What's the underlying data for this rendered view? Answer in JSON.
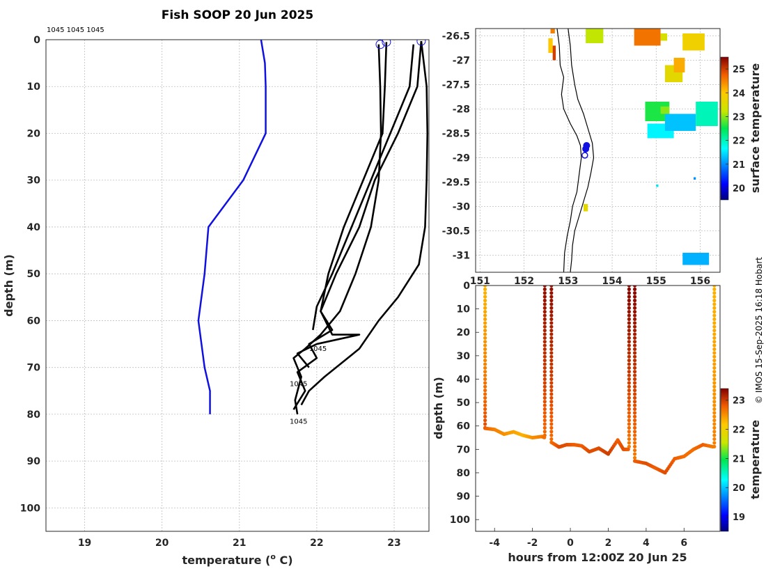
{
  "chart_data": [
    {
      "id": "profile",
      "type": "line",
      "title": "Fish SOOP 20 Jun 2025",
      "xlabel": "temperature (",
      "xlabel_sup": "o",
      "xlabel_unit": " C)",
      "ylabel": "depth (m)",
      "xlim": [
        18.5,
        23.45
      ],
      "ylim": [
        105,
        0
      ],
      "xticks": [
        19,
        20,
        21,
        22,
        23
      ],
      "yticks": [
        0,
        10,
        20,
        30,
        40,
        50,
        60,
        70,
        80,
        90,
        100
      ],
      "top_annotation": "1045 1045 1045",
      "tag_labels": [
        {
          "text": "1045",
          "x": 21.9,
          "y": 66.5
        },
        {
          "text": "1045",
          "x": 21.65,
          "y": 74
        },
        {
          "text": "1045",
          "x": 21.65,
          "y": 82
        }
      ],
      "surface_markers": [
        {
          "x": 22.82,
          "y": 1.0
        },
        {
          "x": 22.9,
          "y": 0.5
        },
        {
          "x": 23.35,
          "y": 0.3
        }
      ],
      "reference_profile": {
        "name": "climatology",
        "color": "#1010e0",
        "points": [
          [
            21.28,
            0
          ],
          [
            21.33,
            5
          ],
          [
            21.34,
            10
          ],
          [
            21.34,
            20
          ],
          [
            21.05,
            30
          ],
          [
            20.6,
            40
          ],
          [
            20.55,
            50
          ],
          [
            20.47,
            60
          ],
          [
            20.55,
            70
          ],
          [
            20.62,
            75
          ],
          [
            20.62,
            80
          ]
        ]
      },
      "series": [
        {
          "name": "profile 1",
          "color": "#000000",
          "points": [
            [
              22.8,
              1
            ],
            [
              22.82,
              10
            ],
            [
              22.83,
              20
            ],
            [
              22.8,
              30
            ],
            [
              22.7,
              40
            ],
            [
              22.5,
              50
            ],
            [
              22.3,
              58
            ],
            [
              22.05,
              63
            ],
            [
              21.85,
              66
            ],
            [
              21.7,
              68
            ],
            [
              21.8,
              72
            ],
            [
              21.72,
              77
            ],
            [
              21.75,
              80
            ]
          ]
        },
        {
          "name": "profile 2",
          "color": "#000000",
          "points": [
            [
              22.9,
              0.5
            ],
            [
              22.88,
              10
            ],
            [
              22.85,
              20
            ],
            [
              22.6,
              30
            ],
            [
              22.35,
              40
            ],
            [
              22.15,
              50
            ],
            [
              22.05,
              58
            ],
            [
              22.2,
              62
            ],
            [
              21.9,
              65
            ],
            [
              22.0,
              68
            ],
            [
              21.75,
              71
            ],
            [
              21.85,
              75
            ],
            [
              21.7,
              79
            ]
          ]
        },
        {
          "name": "profile 3",
          "color": "#000000",
          "points": [
            [
              23.35,
              0.3
            ],
            [
              23.3,
              10
            ],
            [
              23.05,
              20
            ],
            [
              22.75,
              30
            ],
            [
              22.55,
              40
            ],
            [
              22.25,
              50
            ],
            [
              22.05,
              58
            ],
            [
              22.2,
              63
            ],
            [
              22.55,
              63
            ],
            [
              22.0,
              65
            ],
            [
              21.75,
              67
            ],
            [
              21.9,
              70
            ]
          ]
        },
        {
          "name": "profile 4",
          "color": "#000000",
          "points": [
            [
              23.25,
              1
            ],
            [
              23.2,
              10
            ],
            [
              22.95,
              20
            ],
            [
              22.7,
              30
            ],
            [
              22.45,
              40
            ],
            [
              22.2,
              50
            ],
            [
              22.0,
              57
            ],
            [
              21.95,
              62
            ]
          ]
        },
        {
          "name": "profile 5",
          "color": "#000000",
          "points": [
            [
              23.35,
              0.3
            ],
            [
              23.42,
              10
            ],
            [
              23.43,
              20
            ],
            [
              23.42,
              30
            ],
            [
              23.4,
              40
            ],
            [
              23.32,
              48
            ],
            [
              23.05,
              55
            ],
            [
              22.8,
              60
            ],
            [
              22.55,
              66
            ],
            [
              22.1,
              72
            ],
            [
              21.9,
              75
            ],
            [
              21.8,
              78
            ]
          ]
        }
      ]
    },
    {
      "id": "map",
      "type": "heatmap",
      "xlim": [
        150.9,
        156.45
      ],
      "ylim": [
        -31.35,
        -26.35
      ],
      "xticks": [
        151,
        152,
        153,
        154,
        155,
        156
      ],
      "yticks": [
        -26.5,
        -27,
        -27.5,
        -28,
        -28.5,
        -29,
        -29.5,
        -30,
        -30.5,
        -31
      ],
      "ytick_labels": [
        "-26.5",
        "-27",
        "-27.5",
        "-28",
        "-28.5",
        "-29",
        "-29.5",
        "-30",
        "-30.5",
        "-31"
      ],
      "colorbar_label": "surface temperature",
      "colorbar_range": [
        19.5,
        25.5
      ],
      "colorbar_ticks": [
        20,
        21,
        22,
        23,
        24,
        25
      ],
      "sst_patches": [
        {
          "lon0": 152.6,
          "lat0": -26.45,
          "lon1": 152.7,
          "lat1": -26.35,
          "value": 24.5
        },
        {
          "lon0": 152.55,
          "lat0": -26.85,
          "lon1": 152.65,
          "lat1": -26.55,
          "value": 24.0
        },
        {
          "lon0": 152.65,
          "lat0": -27.0,
          "lon1": 152.72,
          "lat1": -26.7,
          "value": 25.0
        },
        {
          "lon0": 153.4,
          "lat0": -26.65,
          "lon1": 153.8,
          "lat1": -26.35,
          "value": 23.2
        },
        {
          "lon0": 154.5,
          "lat0": -26.7,
          "lon1": 155.1,
          "lat1": -26.35,
          "value": 24.6
        },
        {
          "lon0": 155.1,
          "lat0": -26.6,
          "lon1": 155.25,
          "lat1": -26.45,
          "value": 23.4
        },
        {
          "lon0": 155.6,
          "lat0": -26.8,
          "lon1": 156.1,
          "lat1": -26.45,
          "value": 23.8
        },
        {
          "lon0": 155.2,
          "lat0": -27.45,
          "lon1": 155.6,
          "lat1": -27.1,
          "value": 23.6
        },
        {
          "lon0": 155.4,
          "lat0": -27.25,
          "lon1": 155.65,
          "lat1": -26.95,
          "value": 24.2
        },
        {
          "lon0": 154.75,
          "lat0": -28.25,
          "lon1": 155.3,
          "lat1": -27.85,
          "value": 22.6
        },
        {
          "lon0": 154.8,
          "lat0": -28.6,
          "lon1": 155.4,
          "lat1": -28.3,
          "value": 21.6
        },
        {
          "lon0": 155.2,
          "lat0": -28.45,
          "lon1": 155.9,
          "lat1": -28.1,
          "value": 21.3
        },
        {
          "lon0": 155.9,
          "lat0": -28.35,
          "lon1": 156.4,
          "lat1": -27.85,
          "value": 22.0
        },
        {
          "lon0": 155.1,
          "lat0": -28.1,
          "lon1": 155.3,
          "lat1": -27.95,
          "value": 23.0
        },
        {
          "lon0": 155.6,
          "lat0": -31.2,
          "lon1": 156.2,
          "lat1": -30.95,
          "value": 21.2
        },
        {
          "lon0": 153.35,
          "lat0": -30.1,
          "lon1": 153.45,
          "lat1": -29.95,
          "value": 23.6
        },
        {
          "lon0": 155.0,
          "lat0": -29.6,
          "lon1": 155.05,
          "lat1": -29.55,
          "value": 21.5
        },
        {
          "lon0": 155.85,
          "lat0": -29.45,
          "lon1": 155.9,
          "lat1": -29.4,
          "value": 21.0
        }
      ],
      "coast_west": [
        [
          152.75,
          -26.35
        ],
        [
          152.8,
          -26.7
        ],
        [
          152.82,
          -27.1
        ],
        [
          152.9,
          -27.35
        ],
        [
          152.85,
          -27.7
        ],
        [
          152.9,
          -28.0
        ],
        [
          153.05,
          -28.3
        ],
        [
          153.2,
          -28.55
        ],
        [
          153.28,
          -28.75
        ],
        [
          153.3,
          -29.0
        ],
        [
          153.25,
          -29.35
        ],
        [
          153.2,
          -29.7
        ],
        [
          153.1,
          -30.0
        ],
        [
          153.05,
          -30.3
        ],
        [
          152.98,
          -30.6
        ],
        [
          152.92,
          -30.95
        ],
        [
          152.9,
          -31.35
        ]
      ],
      "coast_east": [
        [
          153.0,
          -26.35
        ],
        [
          153.05,
          -26.7
        ],
        [
          153.08,
          -27.1
        ],
        [
          153.15,
          -27.5
        ],
        [
          153.22,
          -27.8
        ],
        [
          153.35,
          -28.1
        ],
        [
          153.45,
          -28.4
        ],
        [
          153.55,
          -28.7
        ],
        [
          153.58,
          -29.0
        ],
        [
          153.52,
          -29.3
        ],
        [
          153.45,
          -29.6
        ],
        [
          153.35,
          -29.9
        ],
        [
          153.25,
          -30.2
        ],
        [
          153.15,
          -30.5
        ],
        [
          153.1,
          -30.8
        ],
        [
          153.08,
          -31.1
        ],
        [
          153.05,
          -31.35
        ]
      ],
      "track": [
        {
          "lon": 153.42,
          "lat": -28.75
        },
        {
          "lon": 153.4,
          "lat": -28.82
        },
        {
          "lon": 153.38,
          "lat": -28.95
        }
      ]
    },
    {
      "id": "section",
      "type": "scatter",
      "xlabel": "hours from 12:00Z 20 Jun 25",
      "ylabel": "depth (m)",
      "xlim": [
        -5.0,
        7.9
      ],
      "ylim": [
        105,
        0
      ],
      "xticks": [
        -4,
        -2,
        0,
        2,
        4,
        6
      ],
      "xtick_labels": [
        "-4",
        "-2",
        "0",
        "2",
        "4",
        "6"
      ],
      "yticks": [
        0,
        10,
        20,
        30,
        40,
        50,
        60,
        70,
        80,
        90,
        100
      ],
      "colorbar_label": "temperature",
      "colorbar_range": [
        18.5,
        23.4
      ],
      "colorbar_ticks": [
        19,
        20,
        21,
        22,
        23
      ],
      "casts": [
        {
          "time": -4.5,
          "t_top": 22.3,
          "t_bottom": 22.9,
          "bottom": 61
        },
        {
          "time": -1.35,
          "t_top": 23.3,
          "t_bottom": 22.7,
          "bottom": 65
        },
        {
          "time": -1.0,
          "t_top": 23.3,
          "t_bottom": 22.7,
          "bottom": 67
        },
        {
          "time": 3.1,
          "t_top": 23.35,
          "t_bottom": 22.6,
          "bottom": 70
        },
        {
          "time": 3.4,
          "t_top": 23.35,
          "t_bottom": 22.6,
          "bottom": 75
        },
        {
          "time": 7.6,
          "t_top": 22.3,
          "t_bottom": 22.6,
          "bottom": 69
        }
      ],
      "tows": [
        {
          "points": [
            [
              -4.5,
              61
            ],
            [
              -4.0,
              61.5
            ],
            [
              -3.5,
              63.5
            ],
            [
              -3.0,
              62.5
            ],
            [
              -2.5,
              64
            ],
            [
              -2.0,
              65
            ],
            [
              -1.5,
              64.5
            ],
            [
              -1.35,
              65
            ]
          ],
          "temps": [
            22.8,
            22.6,
            22.5,
            22.4,
            22.3,
            22.5,
            22.6,
            22.7
          ]
        },
        {
          "points": [
            [
              -1.0,
              67
            ],
            [
              -0.6,
              69
            ],
            [
              -0.2,
              68
            ],
            [
              0.2,
              68
            ],
            [
              0.6,
              68.5
            ],
            [
              1.0,
              71
            ],
            [
              1.5,
              69.5
            ],
            [
              2.0,
              72
            ],
            [
              2.5,
              66
            ],
            [
              2.8,
              70
            ],
            [
              3.1,
              70
            ]
          ],
          "temps": [
            22.7,
            22.9,
            22.9,
            22.8,
            22.8,
            22.9,
            22.9,
            23.0,
            22.8,
            22.9,
            22.8
          ]
        },
        {
          "points": [
            [
              3.4,
              75
            ],
            [
              4.0,
              76
            ],
            [
              4.5,
              78
            ],
            [
              5.0,
              80
            ],
            [
              5.5,
              74
            ],
            [
              6.0,
              73
            ],
            [
              6.5,
              70
            ],
            [
              7.0,
              68
            ],
            [
              7.6,
              69
            ]
          ],
          "temps": [
            22.8,
            22.9,
            22.8,
            22.9,
            22.8,
            22.7,
            22.7,
            22.8,
            22.6
          ]
        }
      ]
    }
  ],
  "credit": "© IMOS 15-Sep-2025 16:18 Hobart"
}
